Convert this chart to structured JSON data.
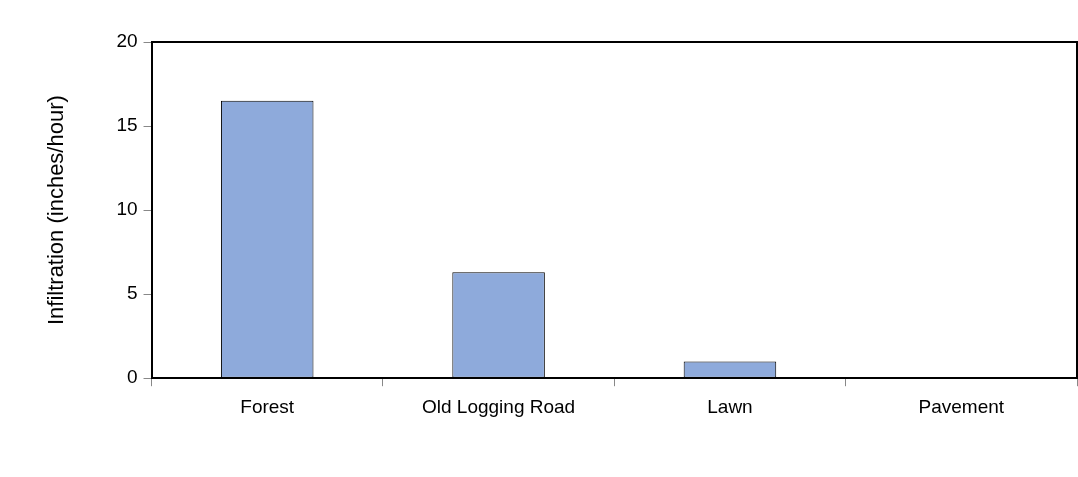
{
  "chart_data": {
    "type": "bar",
    "ylabel": "Infiltration (inches/hour)",
    "categories": [
      "Forest",
      "Old Logging Road",
      "Lawn",
      "Pavement"
    ],
    "values": [
      16.5,
      6.3,
      1.0,
      0
    ],
    "color": "#8eaadb",
    "ylim": [
      0,
      20
    ],
    "yticks": [
      0,
      5,
      10,
      15,
      20
    ],
    "grid": false,
    "legend": false
  }
}
